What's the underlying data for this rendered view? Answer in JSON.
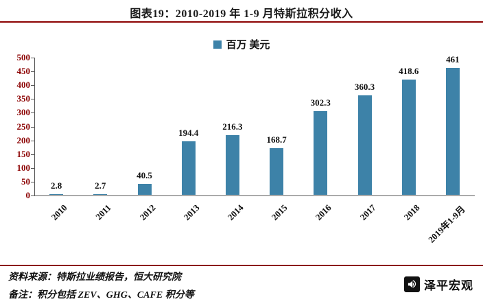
{
  "title": "图表19：2010-2019 年 1-9 月特斯拉积分收入",
  "legend": {
    "label": "百万 美元"
  },
  "chart_data": {
    "type": "bar",
    "title": "图表19：2010-2019 年 1-9 月特斯拉积分收入",
    "categories": [
      "2010",
      "2011",
      "2012",
      "2013",
      "2014",
      "2015",
      "2016",
      "2017",
      "2018",
      "2019年1-9月"
    ],
    "values": [
      2.8,
      2.7,
      40.5,
      194.4,
      216.3,
      168.7,
      302.3,
      360.3,
      418.6,
      461
    ],
    "series_name": "百万 美元",
    "xlabel": "",
    "ylabel": "",
    "ylim": [
      0,
      500
    ],
    "ytick_step": 50,
    "grid": false,
    "legend_position": "top-center",
    "bar_color": "#3D82A8",
    "data_labels": true
  },
  "footer": {
    "source": "资料来源：特斯拉业绩报告，恒大研究院",
    "note": "备注：积分包括 ZEV、GHG、CAFE 积分等",
    "brand": "泽平宏观"
  },
  "colors": {
    "accent_line": "#8B0000",
    "bar": "#3D82A8",
    "y_axis_label": "#8B0000"
  }
}
